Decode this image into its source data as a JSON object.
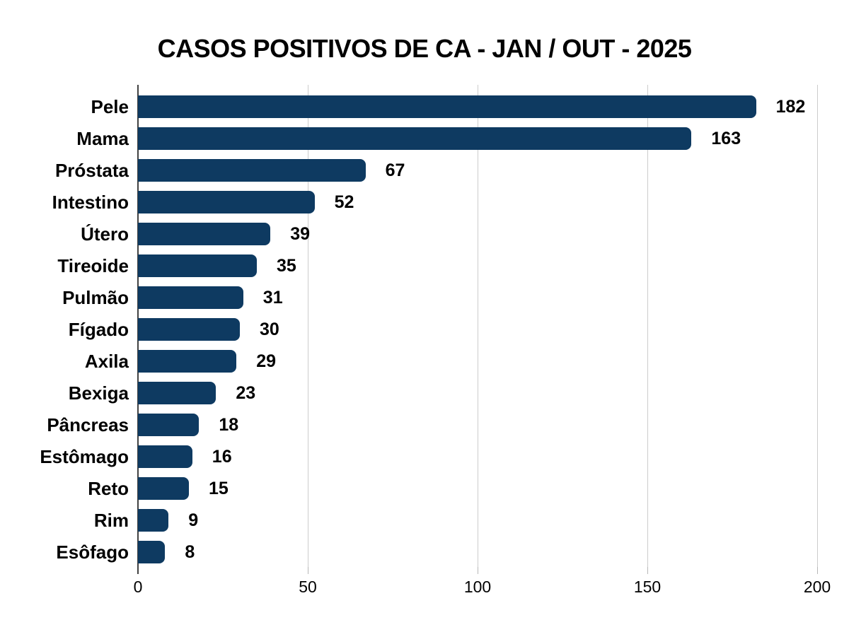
{
  "page": {
    "background": "#ffffff"
  },
  "chart_data": {
    "type": "bar",
    "orientation": "horizontal",
    "title": "CASOS POSITIVOS DE CA - JAN / OUT - 2025",
    "categories": [
      "Pele",
      "Mama",
      "Próstata",
      "Intestino",
      "Útero",
      "Tireoide",
      "Pulmão",
      "Fígado",
      "Axila",
      "Bexiga",
      "Pâncreas",
      "Estômago",
      "Reto",
      "Rim",
      "Esôfago"
    ],
    "values": [
      182,
      163,
      67,
      52,
      39,
      35,
      31,
      30,
      29,
      23,
      18,
      16,
      15,
      9,
      8
    ],
    "data_labels": [
      182,
      163,
      67,
      52,
      39,
      35,
      31,
      30,
      29,
      23,
      18,
      16,
      15,
      9,
      8
    ],
    "xlabel": "",
    "ylabel": "",
    "xlim": [
      0,
      200
    ],
    "x_ticks": [
      0,
      50,
      100,
      150,
      200
    ],
    "grid": "vertical",
    "legend": "none",
    "colors": {
      "bar": "#0e3a61",
      "gridline": "#cccccc",
      "axis_line": "#424242",
      "tick_mark": "#b7b7b7",
      "text": "#000000"
    }
  }
}
